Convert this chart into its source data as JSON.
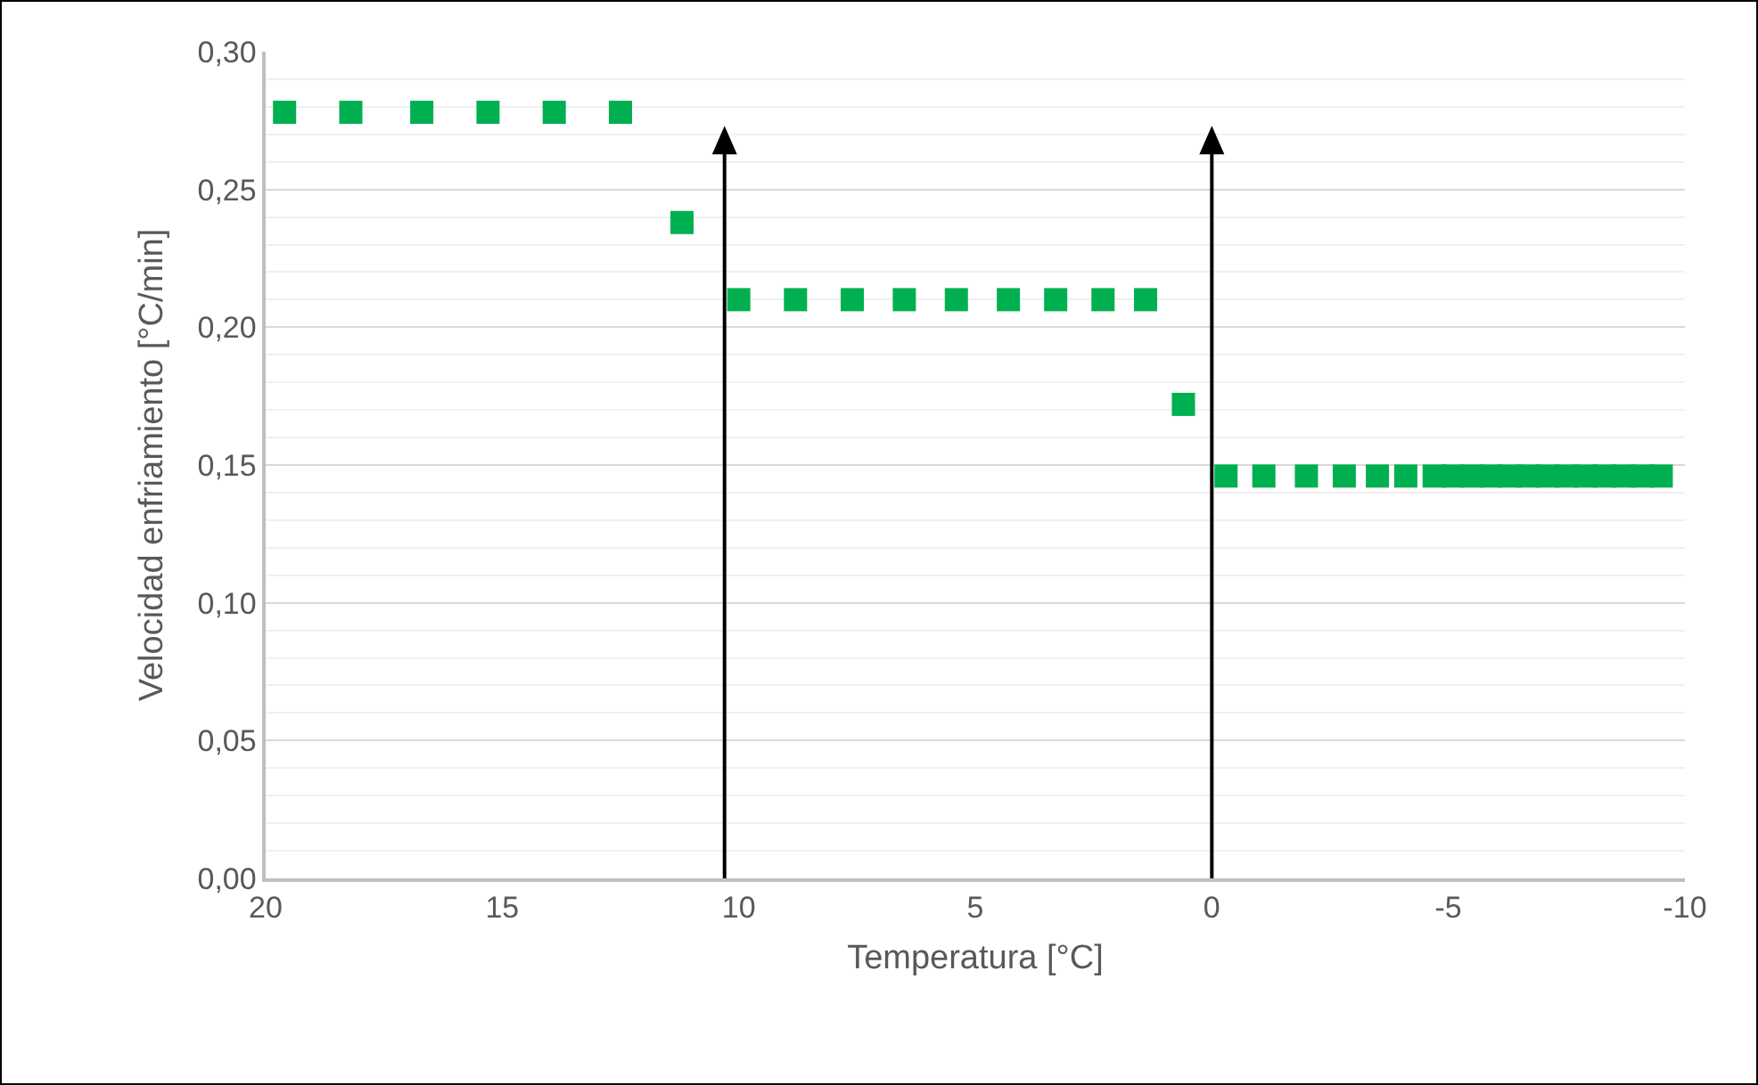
{
  "chart_data": {
    "type": "scatter",
    "xlabel": "Temperatura [°C]",
    "ylabel": "Velocidad enfriamiento [°C/min]",
    "x": [
      19.6,
      18.2,
      16.7,
      15.3,
      13.9,
      12.5,
      11.2,
      10.0,
      8.8,
      7.6,
      6.5,
      5.4,
      4.3,
      3.3,
      2.3,
      1.4,
      0.6,
      -0.3,
      -1.1,
      -2.0,
      -2.8,
      -3.5,
      -4.1,
      -4.7,
      -5.1,
      -5.5,
      -5.9,
      -6.3,
      -6.7,
      -7.1,
      -7.5,
      -7.9,
      -8.3,
      -8.7,
      -9.1,
      -9.5
    ],
    "series": [
      {
        "color": "#00b050",
        "values": [
          0.278,
          0.278,
          0.278,
          0.278,
          0.278,
          0.278,
          0.238,
          0.21,
          0.21,
          0.21,
          0.21,
          0.21,
          0.21,
          0.21,
          0.21,
          0.21,
          0.172,
          0.146,
          0.146,
          0.146,
          0.146,
          0.146,
          0.146,
          0.146,
          0.146,
          0.146,
          0.146,
          0.146,
          0.146,
          0.146,
          0.146,
          0.146,
          0.146,
          0.146,
          0.146,
          0.146
        ]
      }
    ],
    "xlim": [
      20,
      -10
    ],
    "xticks": [
      {
        "value": 20,
        "label": "20"
      },
      {
        "value": 15,
        "label": "15"
      },
      {
        "value": 10,
        "label": "10"
      },
      {
        "value": 5,
        "label": "5"
      },
      {
        "value": 0,
        "label": "0"
      },
      {
        "value": -5,
        "label": "-5"
      },
      {
        "value": -10,
        "label": "-10"
      }
    ],
    "ylim": [
      0,
      0.3
    ],
    "yticks": [
      {
        "value": 0,
        "label": "0,00"
      },
      {
        "value": 0.05,
        "label": "0,05"
      },
      {
        "value": 0.1,
        "label": "0,10"
      },
      {
        "value": 0.15,
        "label": "0,15"
      },
      {
        "value": 0.2,
        "label": "0,20"
      },
      {
        "value": 0.25,
        "label": "0,25"
      },
      {
        "value": 0.3,
        "label": "0,30"
      }
    ],
    "grid": "y",
    "marker": "square",
    "ref_lines": [
      {
        "axis": "x",
        "value": 10.3,
        "color": "#000000"
      },
      {
        "axis": "x",
        "value": 0,
        "color": "#000000"
      }
    ]
  }
}
